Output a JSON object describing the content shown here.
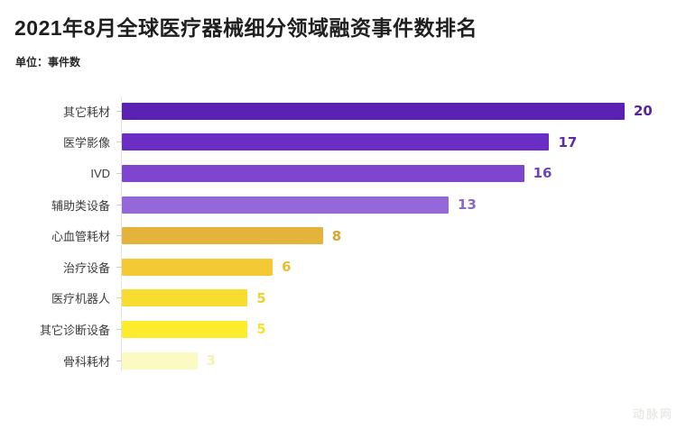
{
  "title": "2021年8月全球医疗器械细分领域融资事件数排名",
  "unit_label": "单位：事件数",
  "watermark": "动脉网",
  "chart_data": {
    "type": "bar",
    "orientation": "horizontal",
    "title": "2021年8月全球医疗器械细分领域融资事件数排名",
    "unit": "事件数",
    "categories": [
      "其它耗材",
      "医学影像",
      "IVD",
      "辅助类设备",
      "心血管耗材",
      "治疗设备",
      "医疗机器人",
      "其它诊断设备",
      "骨科耗材"
    ],
    "values": [
      20,
      17,
      16,
      13,
      8,
      6,
      5,
      5,
      3
    ],
    "xlim": [
      0,
      20
    ],
    "grid": false,
    "value_labels": true,
    "legend": false,
    "bar_colors": [
      "#5b21b2",
      "#6b2ec5",
      "#7e46ce",
      "#9468d8",
      "#e4b33b",
      "#f3ca35",
      "#f8dc30",
      "#fcec2b",
      "#fafac2"
    ],
    "value_label_colors": [
      "#54279d",
      "#5a2ca8",
      "#6f45b4",
      "#8a68c4",
      "#d9a62e",
      "#e9bd2f",
      "#f0d030",
      "#f5e42a",
      "#f3f3ae"
    ]
  }
}
